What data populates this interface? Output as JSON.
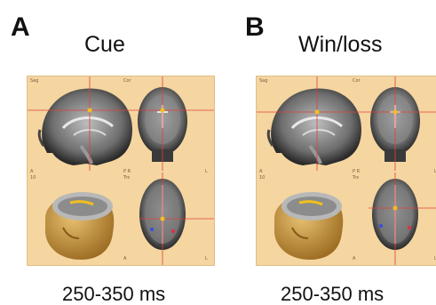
{
  "panels": [
    {
      "letter": "A",
      "title": "Cue",
      "caption": "250-350 ms",
      "viewer_labels": {
        "sag": "Sag",
        "cor": "Cor",
        "trx": "Trx",
        "a1": "A",
        "a2": "A",
        "num": "10",
        "pr": "P R",
        "l1": "L",
        "l2": "L",
        "l3": "L",
        "r": "R"
      }
    },
    {
      "letter": "B",
      "title": "Win/loss",
      "caption": "250-350 ms",
      "viewer_labels": {
        "sag": "Sag",
        "cor": "Cor",
        "trx": "Trx",
        "a1": "A",
        "a2": "A",
        "num": "10",
        "pr": "P R",
        "l1": "L",
        "l2": "L",
        "l3": "L",
        "r": "R"
      }
    }
  ],
  "colors": {
    "viewer_bg": "#f5d5a0",
    "crosshair": "#e0403a",
    "head_surface": "#c99a3c",
    "activation": "#f0c020"
  }
}
